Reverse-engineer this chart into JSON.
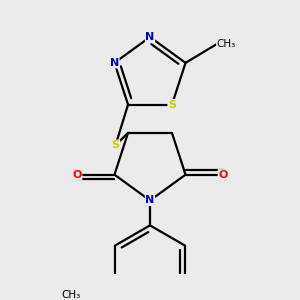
{
  "background_color": "#ebebeb",
  "atom_colors": {
    "C": "#000000",
    "N": "#0000cc",
    "O": "#ff0000",
    "S": "#cccc00"
  },
  "bond_color": "#000000",
  "bond_width": 1.6,
  "font_size_atom": 9
}
